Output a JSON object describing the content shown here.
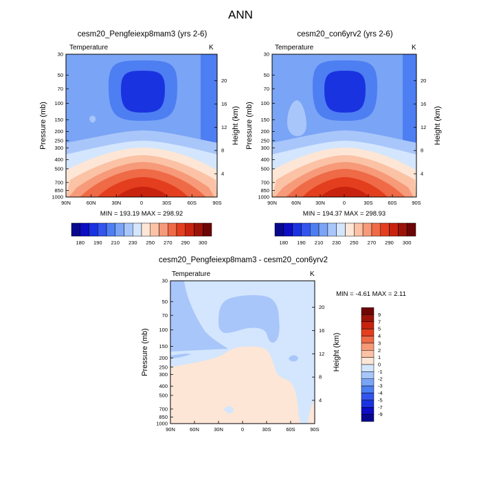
{
  "figure_title": "ANN",
  "chart_data": [
    {
      "id": "panel1",
      "type": "heatmap",
      "title": "cesm20_Pengfeiexp8mam3 (yrs 2-6)",
      "variable": "Temperature",
      "units": "K",
      "xlabel": "",
      "ylabel": "Pressure (mb)",
      "y2label": "Height (km)",
      "x_ticks": [
        "90N",
        "60N",
        "30N",
        "0",
        "30S",
        "60S",
        "90S"
      ],
      "y_ticks": [
        "30",
        "50",
        "70",
        "100",
        "150",
        "200",
        "250",
        "300",
        "400",
        "500",
        "700",
        "850",
        "1000"
      ],
      "y2_ticks": [
        "20",
        "16",
        "12",
        "8",
        "4"
      ],
      "stats": "MIN = 193.19   MAX = 298.92",
      "min": 193.19,
      "max": 298.92,
      "colorbar_labels": [
        "180",
        "190",
        "210",
        "230",
        "250",
        "270",
        "290",
        "300"
      ]
    },
    {
      "id": "panel2",
      "type": "heatmap",
      "title": "cesm20_con6yrv2 (yrs 2-6)",
      "variable": "Temperature",
      "units": "K",
      "xlabel": "",
      "ylabel": "Pressure (mb)",
      "y2label": "Height (km)",
      "x_ticks": [
        "90N",
        "60N",
        "30N",
        "0",
        "30S",
        "60S",
        "90S"
      ],
      "y_ticks": [
        "30",
        "50",
        "70",
        "100",
        "150",
        "200",
        "250",
        "300",
        "400",
        "500",
        "700",
        "850",
        "1000"
      ],
      "y2_ticks": [
        "20",
        "16",
        "12",
        "8",
        "4"
      ],
      "stats": "MIN = 194.37   MAX = 298.93",
      "min": 194.37,
      "max": 298.93,
      "colorbar_labels": [
        "180",
        "190",
        "210",
        "230",
        "250",
        "270",
        "290",
        "300"
      ]
    },
    {
      "id": "panel3",
      "type": "heatmap",
      "title": "cesm20_Pengfeiexp8mam3 - cesm20_con6yrv2",
      "variable": "Temperature",
      "units": "K",
      "xlabel": "",
      "ylabel": "Pressure (mb)",
      "y2label": "Height (km)",
      "x_ticks": [
        "90N",
        "60N",
        "30N",
        "0",
        "30S",
        "60S",
        "90S"
      ],
      "y_ticks": [
        "30",
        "50",
        "70",
        "100",
        "150",
        "200",
        "250",
        "300",
        "400",
        "500",
        "700",
        "850",
        "1000"
      ],
      "y2_ticks": [
        "20",
        "16",
        "12",
        "8",
        "4"
      ],
      "stats": "MIN =  -4.61   MAX =   2.11",
      "min": -4.61,
      "max": 2.11,
      "colorbar_labels": [
        "9",
        "7",
        "5",
        "4",
        "3",
        "2",
        "1",
        "0",
        "-1",
        "-2",
        "-3",
        "-4",
        "-5",
        "-7",
        "-9"
      ]
    }
  ],
  "colors": {
    "abs_scale": [
      "#08088f",
      "#0d0dc4",
      "#1a33e0",
      "#3355ee",
      "#4d7ef2",
      "#7aa4f5",
      "#a9c6fa",
      "#d3e6fd",
      "#fde6d6",
      "#fbc2a5",
      "#f69a79",
      "#ef6a46",
      "#e33e1e",
      "#c8230f",
      "#9c1409",
      "#6e0606"
    ],
    "diff_scale": [
      "#6e0606",
      "#9c1409",
      "#c8230f",
      "#e33e1e",
      "#ef6a46",
      "#f69a79",
      "#fbc2a5",
      "#fde6d6",
      "#d3e6fd",
      "#a9c6fa",
      "#7aa4f5",
      "#4d7ef2",
      "#3355ee",
      "#1a33e0",
      "#0d0dc4",
      "#08088f"
    ]
  }
}
